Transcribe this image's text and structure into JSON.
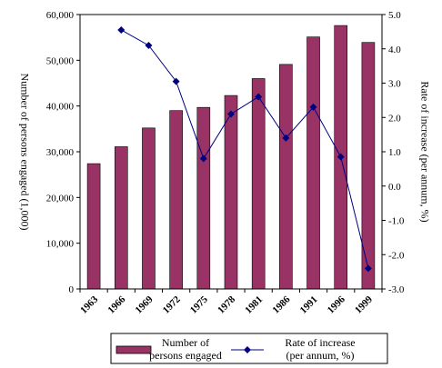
{
  "chart_data": {
    "type": "bar",
    "categories": [
      "1963",
      "1966",
      "1969",
      "1972",
      "1975",
      "1978",
      "1981",
      "1986",
      "1991",
      "1996",
      "1999"
    ],
    "series": [
      {
        "name_lines": [
          "Number of",
          "persons engaged"
        ],
        "type": "bar",
        "axis": "left",
        "color": "#993366",
        "values": [
          27400,
          31100,
          35200,
          39000,
          39700,
          42300,
          46000,
          49100,
          55100,
          57600,
          53900
        ]
      },
      {
        "name_lines": [
          "Rate of increase",
          "(per annum, %)"
        ],
        "type": "line",
        "axis": "right",
        "color": "#000080",
        "values": [
          null,
          4.55,
          4.1,
          3.05,
          0.8,
          2.1,
          2.6,
          1.4,
          2.3,
          0.85,
          -2.4
        ]
      }
    ],
    "ylabel": "Number of persons engaged (1,000)",
    "y2label": "Rate of increase (per annum, %)",
    "ylim": [
      0,
      60000
    ],
    "y2lim": [
      -3.0,
      5.0
    ],
    "yticks": [
      "0",
      "10,000",
      "20,000",
      "30,000",
      "40,000",
      "50,000",
      "60,000"
    ],
    "y2ticks": [
      "-3.0",
      "-2.0",
      "-1.0",
      "0.0",
      "1.0",
      "2.0",
      "3.0",
      "4.0",
      "5.0"
    ],
    "grid": false,
    "legend_position": "bottom"
  }
}
